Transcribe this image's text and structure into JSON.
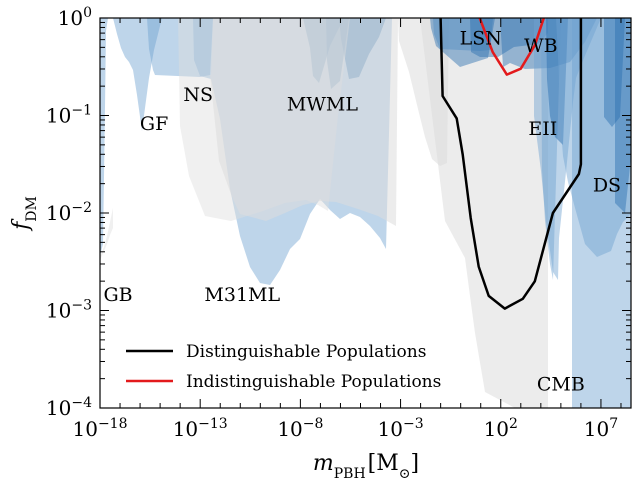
{
  "chart_data": {
    "type": "area",
    "xlabel_base": "m",
    "xlabel_sub": "PBH",
    "xlabel_unit_open": "[M",
    "xlabel_unit_sub": "⊙",
    "xlabel_unit_close": "]",
    "ylabel_base": "f",
    "ylabel_sub": "DM",
    "xscale": "log",
    "yscale": "log",
    "xlim_log10": [
      -18,
      8.5
    ],
    "ylim_log10": [
      -4,
      0
    ],
    "xticks": [
      {
        "base": "10",
        "exp": "−18",
        "log10": -18
      },
      {
        "base": "10",
        "exp": "−13",
        "log10": -13
      },
      {
        "base": "10",
        "exp": "−8",
        "log10": -8
      },
      {
        "base": "10",
        "exp": "−3",
        "log10": -3
      },
      {
        "base": "10",
        "exp": "2",
        "log10": 2
      },
      {
        "base": "10",
        "exp": "7",
        "log10": 7
      }
    ],
    "yticks": [
      {
        "base": "10",
        "exp": "−4",
        "log10": -4
      },
      {
        "base": "10",
        "exp": "−3",
        "log10": -3
      },
      {
        "base": "10",
        "exp": "−2",
        "log10": -2
      },
      {
        "base": "10",
        "exp": "−1",
        "log10": -1
      },
      {
        "base": "10",
        "exp": "0",
        "log10": 0
      }
    ],
    "constraint_labels": [
      {
        "text": "GB",
        "x_log10": -17.1,
        "y_log10": -2.9
      },
      {
        "text": "GF",
        "x_log10": -15.3,
        "y_log10": -1.15
      },
      {
        "text": "NS",
        "x_log10": -13.1,
        "y_log10": -0.85
      },
      {
        "text": "M31ML",
        "x_log10": -10.9,
        "y_log10": -2.9
      },
      {
        "text": "MWML",
        "x_log10": -6.9,
        "y_log10": -0.95
      },
      {
        "text": "LSN",
        "x_log10": 1.0,
        "y_log10": -0.27
      },
      {
        "text": "WB",
        "x_log10": 4.0,
        "y_log10": -0.35
      },
      {
        "text": "EII",
        "x_log10": 4.1,
        "y_log10": -1.2
      },
      {
        "text": "DS",
        "x_log10": 7.3,
        "y_log10": -1.78
      },
      {
        "text": "CMB",
        "x_log10": 5.0,
        "y_log10": -3.82
      }
    ],
    "series": [
      {
        "name": "Distinguishable Populations",
        "color": "#000000",
        "points_log10": [
          [
            -1.0,
            0.0
          ],
          [
            -0.9,
            -0.8
          ],
          [
            -0.2,
            -1.03
          ],
          [
            0.1,
            -1.4
          ],
          [
            0.5,
            -2.05
          ],
          [
            0.9,
            -2.55
          ],
          [
            1.4,
            -2.85
          ],
          [
            2.2,
            -2.98
          ],
          [
            3.1,
            -2.88
          ],
          [
            3.7,
            -2.7
          ],
          [
            4.6,
            -2.0
          ],
          [
            5.9,
            -1.6
          ],
          [
            6.0,
            -1.5
          ],
          [
            6.0,
            0.0
          ]
        ]
      },
      {
        "name": "Indistinguishable Populations",
        "color": "#e31a1c",
        "points_log10": [
          [
            0.95,
            0.0
          ],
          [
            1.6,
            -0.35
          ],
          [
            2.3,
            -0.58
          ],
          [
            3.0,
            -0.52
          ],
          [
            3.7,
            -0.28
          ],
          [
            4.15,
            0.0
          ]
        ]
      }
    ],
    "legend_position": "lower-left"
  }
}
